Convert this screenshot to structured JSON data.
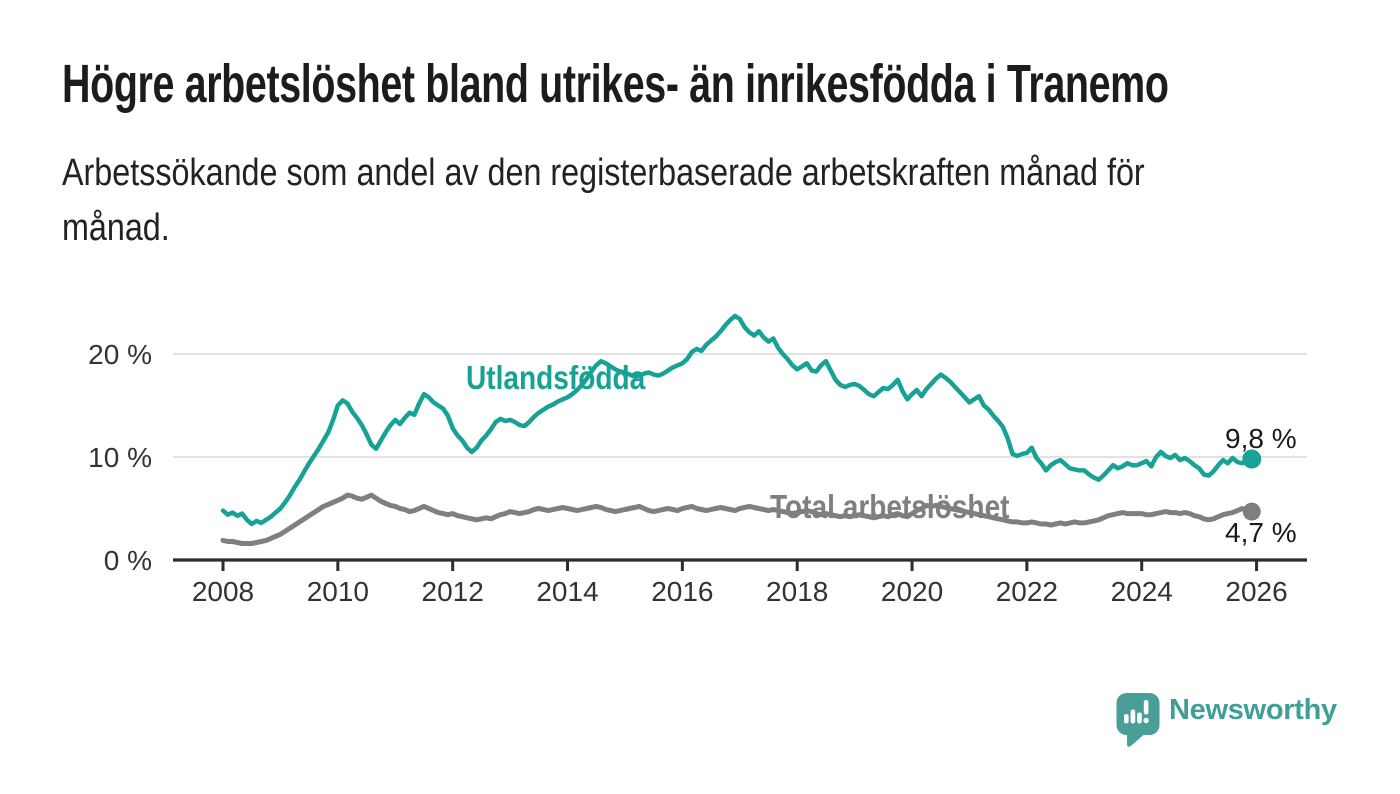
{
  "header": {
    "title": "Högre arbetslöshet bland utrikes- än inrikesfödda i Tranemo",
    "subtitle": "Arbetssökande som andel av den registerbaserade arbetskraften månad för månad."
  },
  "chart_data": {
    "type": "line",
    "title": "Högre arbetslöshet bland utrikes- än inrikesfödda i Tranemo",
    "x_unit": "month",
    "x_start_year": 2008,
    "points_per_year": 12,
    "x_tick_years": [
      2008,
      2010,
      2012,
      2014,
      2016,
      2018,
      2020,
      2022,
      2024,
      2026
    ],
    "y_ticks": [
      {
        "value": 0,
        "label": "0 %"
      },
      {
        "value": 10,
        "label": "10 %"
      },
      {
        "value": 20,
        "label": "20 %"
      }
    ],
    "ylim": [
      0,
      25
    ],
    "grid": "horizontal",
    "legend_position": "inline-labels",
    "axis_color": "#2d2d2d",
    "grid_color": "#d8d8d8",
    "tick_label_color": "#333333",
    "series": [
      {
        "name": "Utlandsfödda",
        "color": "#17A295",
        "line_width": 4.5,
        "end_label": "9,8 %",
        "end_value": 9.8,
        "values": [
          4.8,
          4.4,
          4.6,
          4.3,
          4.5,
          3.9,
          3.5,
          3.8,
          3.6,
          3.9,
          4.2,
          4.6,
          5.0,
          5.6,
          6.3,
          7.1,
          7.8,
          8.6,
          9.4,
          10.1,
          10.8,
          11.6,
          12.4,
          13.6,
          15.0,
          15.5,
          15.2,
          14.4,
          13.8,
          13.1,
          12.2,
          11.2,
          10.8,
          11.6,
          12.4,
          13.1,
          13.6,
          13.2,
          13.8,
          14.3,
          14.1,
          15.2,
          16.1,
          15.8,
          15.3,
          15.0,
          14.7,
          14.0,
          12.8,
          12.1,
          11.6,
          10.9,
          10.5,
          10.9,
          11.6,
          12.1,
          12.7,
          13.4,
          13.7,
          13.5,
          13.6,
          13.4,
          13.1,
          13.0,
          13.4,
          13.9,
          14.3,
          14.6,
          14.9,
          15.1,
          15.4,
          15.6,
          15.8,
          16.1,
          16.5,
          17.0,
          17.6,
          18.3,
          18.9,
          19.3,
          19.1,
          18.8,
          18.5,
          18.3,
          18.2,
          18.0,
          17.8,
          17.9,
          18.1,
          18.2,
          18.0,
          17.9,
          18.1,
          18.4,
          18.7,
          18.9,
          19.1,
          19.5,
          20.2,
          20.5,
          20.3,
          20.9,
          21.3,
          21.7,
          22.2,
          22.8,
          23.3,
          23.7,
          23.4,
          22.6,
          22.1,
          21.8,
          22.2,
          21.6,
          21.2,
          21.5,
          20.6,
          20.0,
          19.5,
          18.9,
          18.5,
          18.8,
          19.1,
          18.4,
          18.3,
          18.9,
          19.3,
          18.4,
          17.5,
          17.0,
          16.8,
          17.0,
          17.1,
          16.9,
          16.5,
          16.1,
          15.9,
          16.3,
          16.7,
          16.6,
          17.0,
          17.5,
          16.4,
          15.6,
          16.1,
          16.5,
          15.9,
          16.6,
          17.1,
          17.6,
          18.0,
          17.7,
          17.3,
          16.8,
          16.3,
          15.8,
          15.3,
          15.6,
          15.9,
          15.0,
          14.6,
          14.0,
          13.5,
          12.9,
          11.8,
          10.3,
          10.1,
          10.3,
          10.4,
          10.9,
          9.9,
          9.4,
          8.7,
          9.2,
          9.5,
          9.7,
          9.3,
          8.9,
          8.8,
          8.7,
          8.7,
          8.3,
          8.0,
          7.8,
          8.2,
          8.7,
          9.2,
          8.9,
          9.1,
          9.4,
          9.2,
          9.2,
          9.4,
          9.6,
          9.1,
          10.0,
          10.5,
          10.1,
          9.9,
          10.2,
          9.7,
          9.9,
          9.6,
          9.2,
          8.9,
          8.3,
          8.2,
          8.6,
          9.2,
          9.7,
          9.4,
          9.9,
          9.5,
          9.4,
          9.6,
          9.8
        ]
      },
      {
        "name": "Total arbetslöshet",
        "color": "#7F7F83",
        "line_width": 5,
        "end_label": "4,7 %",
        "end_value": 4.7,
        "values": [
          1.9,
          1.8,
          1.8,
          1.7,
          1.6,
          1.6,
          1.6,
          1.7,
          1.8,
          1.9,
          2.1,
          2.3,
          2.5,
          2.8,
          3.1,
          3.4,
          3.7,
          4.0,
          4.3,
          4.6,
          4.9,
          5.2,
          5.4,
          5.6,
          5.8,
          6.0,
          6.3,
          6.2,
          6.0,
          5.9,
          6.1,
          6.3,
          6.0,
          5.7,
          5.5,
          5.3,
          5.2,
          5.0,
          4.9,
          4.7,
          4.8,
          5.0,
          5.2,
          5.0,
          4.8,
          4.6,
          4.5,
          4.4,
          4.5,
          4.3,
          4.2,
          4.1,
          4.0,
          3.9,
          4.0,
          4.1,
          4.0,
          4.2,
          4.4,
          4.5,
          4.7,
          4.6,
          4.5,
          4.6,
          4.7,
          4.9,
          5.0,
          4.9,
          4.8,
          4.9,
          5.0,
          5.1,
          5.0,
          4.9,
          4.8,
          4.9,
          5.0,
          5.1,
          5.2,
          5.1,
          4.9,
          4.8,
          4.7,
          4.8,
          4.9,
          5.0,
          5.1,
          5.2,
          5.0,
          4.8,
          4.7,
          4.8,
          4.9,
          5.0,
          4.9,
          4.8,
          5.0,
          5.1,
          5.2,
          5.0,
          4.9,
          4.8,
          4.9,
          5.0,
          5.1,
          5.0,
          4.9,
          4.8,
          5.0,
          5.1,
          5.2,
          5.1,
          5.0,
          4.9,
          4.8,
          4.9,
          4.8,
          4.7,
          4.6,
          4.5,
          4.6,
          4.7,
          4.8,
          4.7,
          4.5,
          4.4,
          4.5,
          4.4,
          4.3,
          4.2,
          4.3,
          4.2,
          4.3,
          4.4,
          4.3,
          4.2,
          4.1,
          4.2,
          4.3,
          4.2,
          4.4,
          4.5,
          4.3,
          4.2,
          4.5,
          4.8,
          5.0,
          5.3,
          5.2,
          5.3,
          5.2,
          5.1,
          5.0,
          4.9,
          4.8,
          4.7,
          4.6,
          4.5,
          4.4,
          4.3,
          4.2,
          4.1,
          4.0,
          3.9,
          3.8,
          3.7,
          3.7,
          3.6,
          3.6,
          3.7,
          3.6,
          3.5,
          3.5,
          3.4,
          3.5,
          3.6,
          3.5,
          3.6,
          3.7,
          3.6,
          3.6,
          3.7,
          3.8,
          3.9,
          4.1,
          4.3,
          4.4,
          4.5,
          4.6,
          4.5,
          4.5,
          4.5,
          4.5,
          4.4,
          4.4,
          4.5,
          4.6,
          4.7,
          4.6,
          4.6,
          4.5,
          4.6,
          4.5,
          4.3,
          4.2,
          4.0,
          3.9,
          4.0,
          4.2,
          4.4,
          4.5,
          4.6,
          4.8,
          5.0,
          4.8,
          4.7
        ]
      }
    ]
  },
  "branding": {
    "name": "Newsworthy",
    "color": "#3F9E97",
    "icon": "speech-bubble-bar-chart-icon"
  }
}
